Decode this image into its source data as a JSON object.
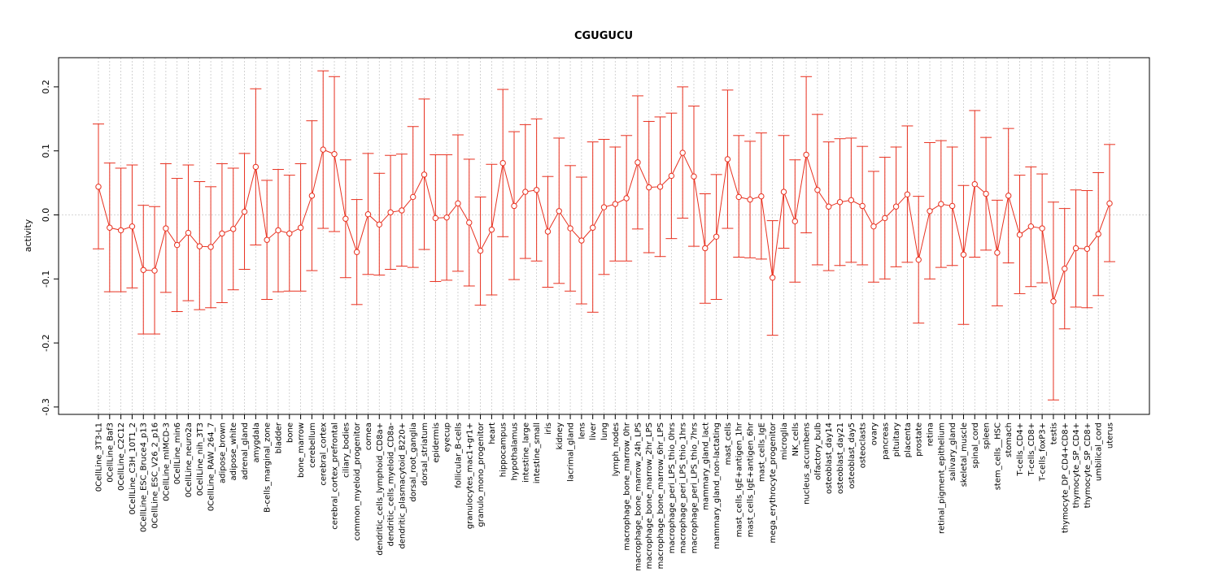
{
  "chart_data": {
    "type": "line",
    "title": "CGUGUCU",
    "xlabel": "",
    "ylabel": "activity",
    "ylim": [
      -0.31,
      0.245
    ],
    "yticks": [
      -0.3,
      -0.2,
      -0.1,
      0.0,
      0.1,
      0.2
    ],
    "ytick_labels": [
      "-0.3",
      "-0.2",
      "-0.1",
      "0.0",
      "0.1",
      "0.2"
    ],
    "grid": true,
    "reference_line": 0.0,
    "colors": {
      "series": "#e8301f",
      "grid": "#c8c8c8",
      "axis": "#000000"
    },
    "categories": [
      "0CellLine_3T3-L1",
      "0CellLine_Baf3",
      "0CellLine_C2C12",
      "0CellLine_C3H_10T1_2",
      "0CellLine_ESC_Bruce4_p13",
      "0CellLine_ESC_V26_2_p16",
      "0CellLine_mIMCD-3",
      "0CellLine_min6",
      "0CellLine_neuro2a",
      "0CellLine_nih_3T3",
      "0CellLine_RAW_264_7",
      "adipose_brown",
      "adipose_white",
      "adrenal_gland",
      "amygdala",
      "B-cells_marginal_zone",
      "bladder",
      "bone",
      "bone_marrow",
      "cerebellum",
      "cerebral_cortex",
      "cerebral_cortex_prefrontal",
      "ciliary_bodies",
      "common_myeloid_progenitor",
      "cornea",
      "dendritic_cells_lymphoid_CD8a+",
      "dendritic_cells_myeloid_CD8a-",
      "dendritic_plasmacytoid_B220+",
      "dorsal_root_ganglia",
      "dorsal_striatum",
      "epidermis",
      "eyecup",
      "follicular_B-cells",
      "granulocytes_mac1+gr1+",
      "granulo_mono_progenitor",
      "heart",
      "hippocampus",
      "hypothalamus",
      "intestine_large",
      "intestine_small",
      "iris",
      "kidney",
      "lacrimal_gland",
      "lens",
      "liver",
      "lung",
      "lymph_nodes",
      "macrophage_bone_marrow_0hr",
      "macrophage_bone_marrow_24h_LPS",
      "macrophage_bone_marrow_2hr_LPS",
      "macrophage_bone_marrow_6hr_LPS",
      "macrophage_peri_LPS_thio_0hrs",
      "macrophage_peri_LPS_thio_1hrs",
      "macrophage_peri_LPS_thio_7hrs",
      "mammary_gland_lact",
      "mammary_gland_non-lactating",
      "mast_cells",
      "mast_cells_IgE+antigen_1hr",
      "mast_cells_IgE+antigen_6hr",
      "mast_cells_IgE",
      "mega_erythrocyte_progenitor",
      "microglia",
      "NK_cells",
      "nucleus_accumbens",
      "olfactory_bulb",
      "osteoblast_day14",
      "osteoblast_day21",
      "osteoblast_day5",
      "osteoclasts",
      "ovary",
      "pancreas",
      "pituitary",
      "placenta",
      "prostate",
      "retina",
      "retinal_pigment_epithelium",
      "salivary_gland",
      "skeletal_muscle",
      "spinal_cord",
      "spleen",
      "stem_cells__HSC",
      "stomach",
      "T-cells_CD4+",
      "T-cells_CD8+",
      "T-cells_foxP3+",
      "testis",
      "thymocyte_DP_CD4+CD8+",
      "thymocyte_SP_CD4+",
      "thymocyte_SP_CD8+",
      "umbilical_cord",
      "uterus"
    ],
    "series": [
      {
        "values": [
          0.044,
          -0.02,
          -0.024,
          -0.018,
          -0.086,
          -0.087,
          -0.021,
          -0.047,
          -0.028,
          -0.049,
          -0.05,
          -0.029,
          -0.022,
          0.005,
          0.075,
          -0.039,
          -0.024,
          -0.029,
          -0.02,
          0.03,
          0.102,
          0.095,
          -0.006,
          -0.058,
          0.001,
          -0.015,
          0.004,
          0.007,
          0.028,
          0.063,
          -0.005,
          -0.004,
          0.018,
          -0.012,
          -0.056,
          -0.023,
          0.081,
          0.014,
          0.036,
          0.039,
          -0.026,
          0.006,
          -0.021,
          -0.04,
          -0.02,
          0.012,
          0.017,
          0.026,
          0.082,
          0.043,
          0.044,
          0.061,
          0.097,
          0.06,
          -0.052,
          -0.034,
          0.087,
          0.028,
          0.024,
          0.029,
          -0.098,
          0.036,
          -0.01,
          0.094,
          0.039,
          0.013,
          0.02,
          0.023,
          0.014,
          -0.018,
          -0.005,
          0.013,
          0.032,
          -0.07,
          0.006,
          0.017,
          0.014,
          -0.062,
          0.048,
          0.033,
          -0.059,
          0.03,
          -0.031,
          -0.018,
          -0.021,
          -0.135,
          -0.084,
          -0.052,
          -0.053,
          -0.03,
          0.018
        ],
        "upper": [
          0.142,
          0.081,
          0.073,
          0.078,
          0.015,
          0.013,
          0.08,
          0.057,
          0.078,
          0.052,
          0.044,
          0.08,
          0.073,
          0.096,
          0.197,
          0.054,
          0.071,
          0.062,
          0.08,
          0.147,
          0.225,
          0.216,
          0.086,
          0.024,
          0.096,
          0.065,
          0.093,
          0.095,
          0.138,
          0.181,
          0.094,
          0.094,
          0.125,
          0.087,
          0.028,
          0.079,
          0.196,
          0.13,
          0.141,
          0.15,
          0.06,
          0.12,
          0.077,
          0.059,
          0.114,
          0.118,
          0.106,
          0.124,
          0.186,
          0.146,
          0.153,
          0.159,
          0.2,
          0.17,
          0.033,
          0.063,
          0.195,
          0.124,
          0.115,
          0.128,
          -0.009,
          0.124,
          0.086,
          0.216,
          0.157,
          0.114,
          0.119,
          0.12,
          0.107,
          0.068,
          0.09,
          0.106,
          0.139,
          0.029,
          0.113,
          0.116,
          0.106,
          0.046,
          0.163,
          0.121,
          0.023,
          0.135,
          0.062,
          0.075,
          0.064,
          0.02,
          0.01,
          0.039,
          0.038,
          0.066,
          0.11
        ],
        "lower": [
          -0.053,
          -0.12,
          -0.12,
          -0.114,
          -0.186,
          -0.186,
          -0.121,
          -0.151,
          -0.134,
          -0.148,
          -0.145,
          -0.137,
          -0.117,
          -0.085,
          -0.047,
          -0.132,
          -0.12,
          -0.119,
          -0.119,
          -0.087,
          -0.021,
          -0.026,
          -0.098,
          -0.14,
          -0.093,
          -0.094,
          -0.085,
          -0.08,
          -0.082,
          -0.054,
          -0.104,
          -0.102,
          -0.088,
          -0.111,
          -0.141,
          -0.125,
          -0.034,
          -0.101,
          -0.068,
          -0.072,
          -0.113,
          -0.107,
          -0.119,
          -0.139,
          -0.152,
          -0.093,
          -0.072,
          -0.072,
          -0.022,
          -0.059,
          -0.065,
          -0.037,
          -0.005,
          -0.049,
          -0.138,
          -0.132,
          -0.021,
          -0.066,
          -0.067,
          -0.069,
          -0.188,
          -0.052,
          -0.105,
          -0.028,
          -0.078,
          -0.087,
          -0.079,
          -0.074,
          -0.078,
          -0.105,
          -0.1,
          -0.081,
          -0.074,
          -0.169,
          -0.1,
          -0.082,
          -0.079,
          -0.171,
          -0.066,
          -0.055,
          -0.142,
          -0.075,
          -0.123,
          -0.112,
          -0.106,
          -0.289,
          -0.178,
          -0.144,
          -0.145,
          -0.126,
          -0.073
        ]
      }
    ]
  }
}
